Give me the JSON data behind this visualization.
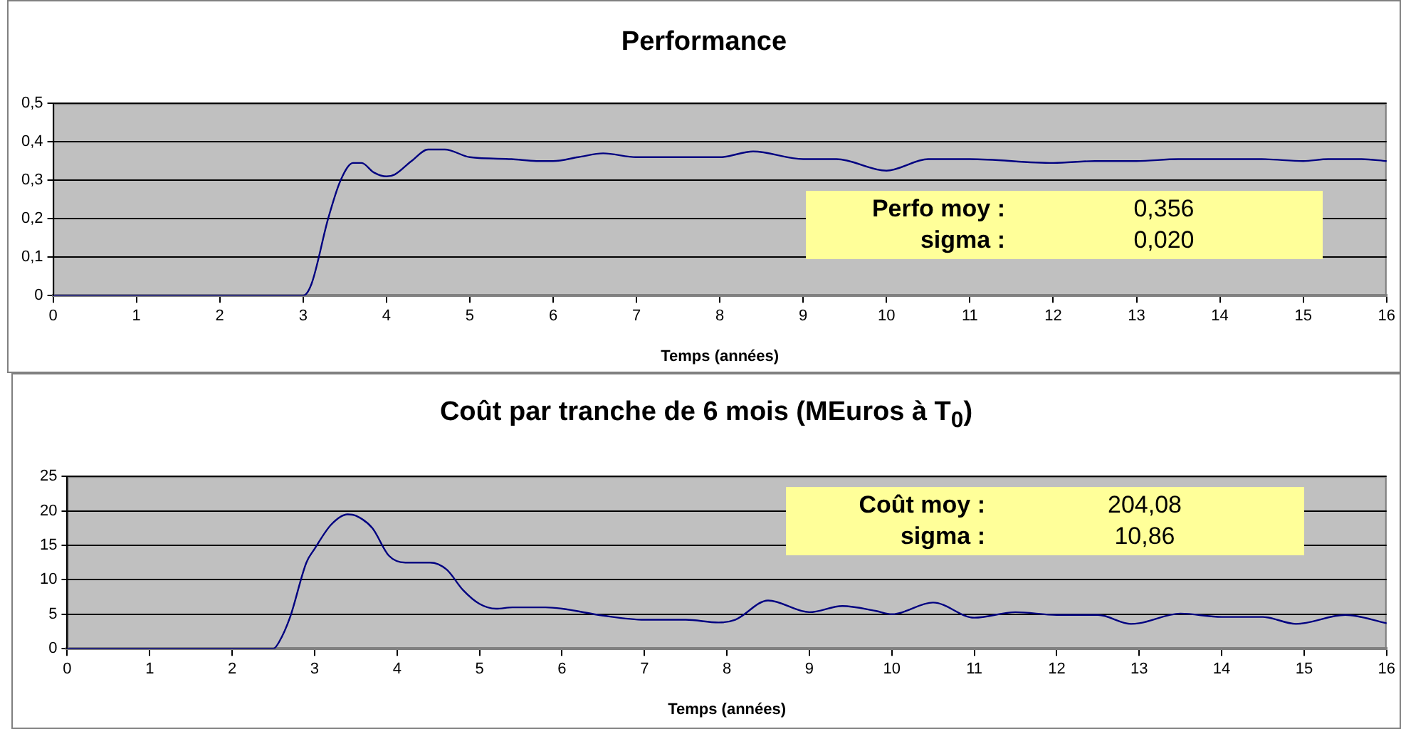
{
  "chart_data": [
    {
      "type": "line",
      "title": "Performance",
      "xlabel": "Temps (années)",
      "x": [
        0,
        2.6,
        3.0,
        3.1,
        3.3,
        3.45,
        3.6,
        3.7,
        3.85,
        4.0,
        4.1,
        4.3,
        4.5,
        4.7,
        5.0,
        5.5,
        5.8,
        6.0,
        6.3,
        6.6,
        7.0,
        7.5,
        8.0,
        8.4,
        9.0,
        9.4,
        10.0,
        10.5,
        11.0,
        12.0,
        12.5,
        13.0,
        13.5,
        14.5,
        15.0,
        15.3,
        15.7,
        16.0
      ],
      "series": [
        {
          "color": "#000080",
          "values": [
            0,
            0,
            0,
            0.03,
            0.2,
            0.3,
            0.345,
            0.345,
            0.32,
            0.31,
            0.315,
            0.35,
            0.38,
            0.38,
            0.36,
            0.355,
            0.35,
            0.35,
            0.36,
            0.37,
            0.36,
            0.36,
            0.36,
            0.375,
            0.355,
            0.355,
            0.325,
            0.355,
            0.355,
            0.345,
            0.35,
            0.35,
            0.355,
            0.355,
            0.35,
            0.355,
            0.355,
            0.35
          ]
        }
      ],
      "xlim": [
        0,
        16
      ],
      "xticks": [
        0,
        1,
        2,
        3,
        4,
        5,
        6,
        7,
        8,
        9,
        10,
        11,
        12,
        13,
        14,
        15,
        16
      ],
      "ylim": [
        0,
        0.5
      ],
      "yticks": [
        0,
        {
          "value": 0.1,
          "label": "0,1"
        },
        {
          "value": 0.2,
          "label": "0,2"
        },
        {
          "value": 0.3,
          "label": "0,3"
        },
        {
          "value": 0.4,
          "label": "0,4"
        },
        {
          "value": 0.5,
          "label": "0,5"
        }
      ],
      "grid": "y",
      "legend": false,
      "marker": "none",
      "line_style": "solid",
      "annotations": [
        "Perfo  moy :",
        "0,356",
        "sigma :",
        "0,020"
      ]
    },
    {
      "type": "line",
      "title": "Coût par tranche de 6 mois (MEuros à T$_{0}$)",
      "xlabel": "Temps (années)",
      "x": [
        0,
        2.1,
        2.5,
        2.57,
        2.7,
        2.9,
        3.0,
        3.2,
        3.4,
        3.5,
        3.7,
        3.9,
        4.1,
        4.4,
        4.6,
        4.8,
        5.0,
        5.2,
        5.4,
        5.8,
        6.0,
        6.5,
        7.0,
        7.5,
        7.9,
        8.1,
        8.5,
        9.0,
        9.4,
        9.8,
        10.0,
        10.5,
        11.0,
        11.5,
        12.0,
        12.5,
        12.9,
        13.0,
        13.5,
        14.0,
        14.5,
        14.9,
        15.5,
        16.0
      ],
      "series": [
        {
          "color": "#000080",
          "values": [
            0,
            0,
            0,
            1,
            4.5,
            12.5,
            14.5,
            18,
            19.5,
            19.3,
            17.5,
            13.5,
            12.5,
            12.5,
            11.5,
            8.5,
            6.5,
            5.8,
            6,
            6,
            5.8,
            4.8,
            4.2,
            4.2,
            3.8,
            4.2,
            7,
            5.3,
            6.2,
            5.5,
            5,
            6.7,
            4.5,
            5.3,
            4.9,
            4.9,
            3.6,
            3.7,
            5.1,
            4.6,
            4.6,
            3.6,
            4.9,
            3.7
          ]
        }
      ],
      "xlim": [
        0,
        16
      ],
      "xticks": [
        0,
        1,
        2,
        3,
        4,
        5,
        6,
        7,
        8,
        9,
        10,
        11,
        12,
        13,
        14,
        15,
        16
      ],
      "ylim": [
        0,
        25
      ],
      "yticks": [
        0,
        5,
        10,
        15,
        20,
        25
      ],
      "grid": "y",
      "legend": false,
      "marker": "none",
      "line_style": "solid",
      "annotations": [
        "Coût  moy :",
        "204,08",
        "sigma :",
        "10,86"
      ]
    }
  ]
}
